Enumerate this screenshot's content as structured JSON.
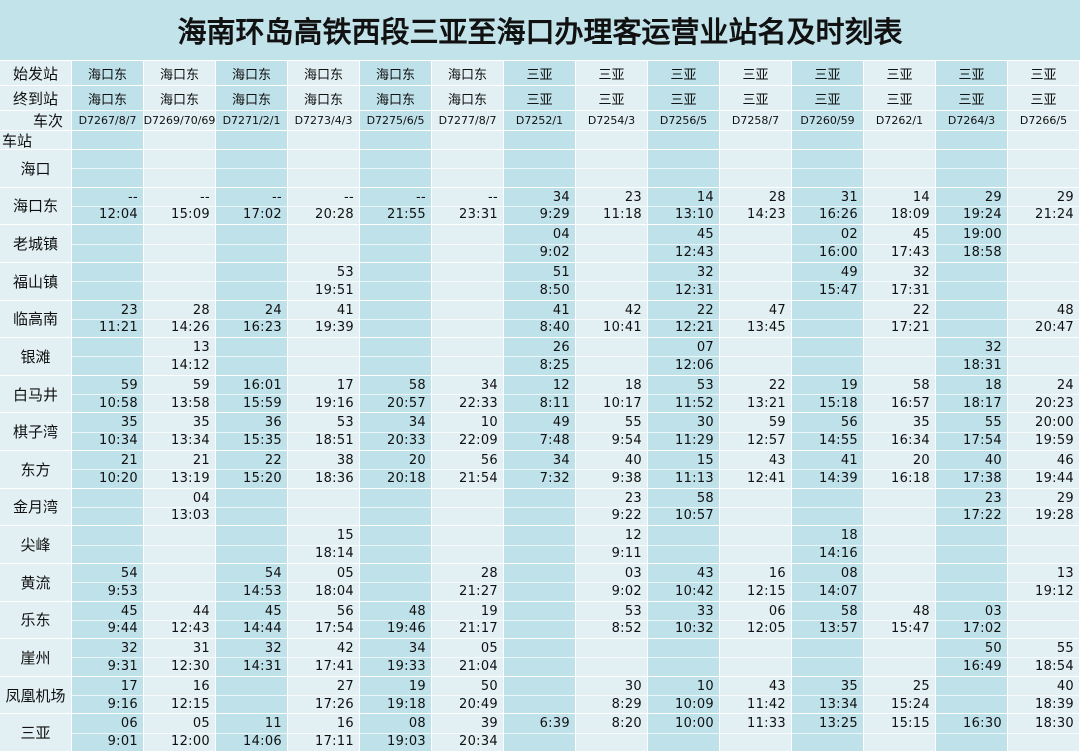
{
  "header": {
    "title": "海南环岛高铁西段三亚至海口办理客运营业站名及时刻表"
  },
  "table": {
    "row_labels": {
      "origin": "始发站",
      "destination": "终到站",
      "train": "车次",
      "station": "车站"
    },
    "columns": [
      {
        "origin": "海口东",
        "destination": "海口东",
        "train": "D7267/8/7"
      },
      {
        "origin": "海口东",
        "destination": "海口东",
        "train": "D7269/70/69"
      },
      {
        "origin": "海口东",
        "destination": "海口东",
        "train": "D7271/2/1"
      },
      {
        "origin": "海口东",
        "destination": "海口东",
        "train": "D7273/4/3"
      },
      {
        "origin": "海口东",
        "destination": "海口东",
        "train": "D7275/6/5"
      },
      {
        "origin": "海口东",
        "destination": "海口东",
        "train": "D7277/8/7"
      },
      {
        "origin": "三亚",
        "destination": "三亚",
        "train": "D7252/1"
      },
      {
        "origin": "三亚",
        "destination": "三亚",
        "train": "D7254/3"
      },
      {
        "origin": "三亚",
        "destination": "三亚",
        "train": "D7256/5"
      },
      {
        "origin": "三亚",
        "destination": "三亚",
        "train": "D7258/7"
      },
      {
        "origin": "三亚",
        "destination": "三亚",
        "train": "D7260/59"
      },
      {
        "origin": "三亚",
        "destination": "三亚",
        "train": "D7262/1"
      },
      {
        "origin": "三亚",
        "destination": "三亚",
        "train": "D7264/3"
      },
      {
        "origin": "三亚",
        "destination": "三亚",
        "train": "D7266/5"
      }
    ],
    "stations": [
      {
        "name": "海口",
        "cells": [
          null,
          null,
          null,
          null,
          null,
          null,
          null,
          null,
          null,
          null,
          null,
          null,
          null,
          null
        ]
      },
      {
        "name": "海口东",
        "cells": [
          [
            "--",
            "12:04"
          ],
          [
            "--",
            "15:09"
          ],
          [
            "--",
            "17:02"
          ],
          [
            "--",
            "20:28"
          ],
          [
            "--",
            "21:55"
          ],
          [
            "--",
            "23:31"
          ],
          [
            "34",
            "9:29"
          ],
          [
            "23",
            "11:18"
          ],
          [
            "14",
            "13:10"
          ],
          [
            "28",
            "14:23"
          ],
          [
            "31",
            "16:26"
          ],
          [
            "14",
            "18:09"
          ],
          [
            "29",
            "19:24"
          ],
          [
            "29",
            "21:24"
          ]
        ]
      },
      {
        "name": "老城镇",
        "cells": [
          null,
          null,
          null,
          null,
          null,
          null,
          [
            "04",
            "9:02"
          ],
          null,
          [
            "45",
            "12:43"
          ],
          null,
          [
            "02",
            "16:00"
          ],
          [
            "45",
            "17:43"
          ],
          [
            "19:00",
            "18:58"
          ],
          null
        ]
      },
      {
        "name": "福山镇",
        "cells": [
          null,
          null,
          null,
          [
            "53",
            "19:51"
          ],
          null,
          null,
          [
            "51",
            "8:50"
          ],
          null,
          [
            "32",
            "12:31"
          ],
          null,
          [
            "49",
            "15:47"
          ],
          [
            "32",
            "17:31"
          ],
          null,
          null
        ]
      },
      {
        "name": "临高南",
        "cells": [
          [
            "23",
            "11:21"
          ],
          [
            "28",
            "14:26"
          ],
          [
            "24",
            "16:23"
          ],
          [
            "41",
            "19:39"
          ],
          null,
          null,
          [
            "41",
            "8:40"
          ],
          [
            "42",
            "10:41"
          ],
          [
            "22",
            "12:21"
          ],
          [
            "47",
            "13:45"
          ],
          null,
          [
            "22",
            "17:21"
          ],
          null,
          [
            "48",
            "20:47"
          ]
        ]
      },
      {
        "name": "银滩",
        "cells": [
          null,
          [
            "13",
            "14:12"
          ],
          null,
          null,
          null,
          null,
          [
            "26",
            "8:25"
          ],
          null,
          [
            "07",
            "12:06"
          ],
          null,
          null,
          null,
          [
            "32",
            "18:31"
          ],
          null
        ]
      },
      {
        "name": "白马井",
        "cells": [
          [
            "59",
            "10:58"
          ],
          [
            "59",
            "13:58"
          ],
          [
            "16:01",
            "15:59"
          ],
          [
            "17",
            "19:16"
          ],
          [
            "58",
            "20:57"
          ],
          [
            "34",
            "22:33"
          ],
          [
            "12",
            "8:11"
          ],
          [
            "18",
            "10:17"
          ],
          [
            "53",
            "11:52"
          ],
          [
            "22",
            "13:21"
          ],
          [
            "19",
            "15:18"
          ],
          [
            "58",
            "16:57"
          ],
          [
            "18",
            "18:17"
          ],
          [
            "24",
            "20:23"
          ]
        ]
      },
      {
        "name": "棋子湾",
        "cells": [
          [
            "35",
            "10:34"
          ],
          [
            "35",
            "13:34"
          ],
          [
            "36",
            "15:35"
          ],
          [
            "53",
            "18:51"
          ],
          [
            "34",
            "20:33"
          ],
          [
            "10",
            "22:09"
          ],
          [
            "49",
            "7:48"
          ],
          [
            "55",
            "9:54"
          ],
          [
            "30",
            "11:29"
          ],
          [
            "59",
            "12:57"
          ],
          [
            "56",
            "14:55"
          ],
          [
            "35",
            "16:34"
          ],
          [
            "55",
            "17:54"
          ],
          [
            "20:00",
            "19:59"
          ]
        ]
      },
      {
        "name": "东方",
        "cells": [
          [
            "21",
            "10:20"
          ],
          [
            "21",
            "13:19"
          ],
          [
            "22",
            "15:20"
          ],
          [
            "38",
            "18:36"
          ],
          [
            "20",
            "20:18"
          ],
          [
            "56",
            "21:54"
          ],
          [
            "34",
            "7:32"
          ],
          [
            "40",
            "9:38"
          ],
          [
            "15",
            "11:13"
          ],
          [
            "43",
            "12:41"
          ],
          [
            "41",
            "14:39"
          ],
          [
            "20",
            "16:18"
          ],
          [
            "40",
            "17:38"
          ],
          [
            "46",
            "19:44"
          ]
        ]
      },
      {
        "name": "金月湾",
        "cells": [
          null,
          [
            "04",
            "13:03"
          ],
          null,
          null,
          null,
          null,
          null,
          [
            "23",
            "9:22"
          ],
          [
            "58",
            "10:57"
          ],
          null,
          null,
          null,
          [
            "23",
            "17:22"
          ],
          [
            "29",
            "19:28"
          ]
        ]
      },
      {
        "name": "尖峰",
        "cells": [
          null,
          null,
          null,
          [
            "15",
            "18:14"
          ],
          null,
          null,
          null,
          [
            "12",
            "9:11"
          ],
          null,
          null,
          [
            "18",
            "14:16"
          ],
          null,
          null,
          null
        ]
      },
      {
        "name": "黄流",
        "cells": [
          [
            "54",
            "9:53"
          ],
          null,
          [
            "54",
            "14:53"
          ],
          [
            "05",
            "18:04"
          ],
          null,
          [
            "28",
            "21:27"
          ],
          null,
          [
            "03",
            "9:02"
          ],
          [
            "43",
            "10:42"
          ],
          [
            "16",
            "12:15"
          ],
          [
            "08",
            "14:07"
          ],
          null,
          null,
          [
            "13",
            "19:12"
          ]
        ]
      },
      {
        "name": "乐东",
        "cells": [
          [
            "45",
            "9:44"
          ],
          [
            "44",
            "12:43"
          ],
          [
            "45",
            "14:44"
          ],
          [
            "56",
            "17:54"
          ],
          [
            "48",
            "19:46"
          ],
          [
            "19",
            "21:17"
          ],
          null,
          [
            "53",
            "8:52"
          ],
          [
            "33",
            "10:32"
          ],
          [
            "06",
            "12:05"
          ],
          [
            "58",
            "13:57"
          ],
          [
            "48",
            "15:47"
          ],
          [
            "03",
            "17:02"
          ],
          null
        ]
      },
      {
        "name": "崖州",
        "cells": [
          [
            "32",
            "9:31"
          ],
          [
            "31",
            "12:30"
          ],
          [
            "32",
            "14:31"
          ],
          [
            "42",
            "17:41"
          ],
          [
            "34",
            "19:33"
          ],
          [
            "05",
            "21:04"
          ],
          null,
          null,
          null,
          null,
          null,
          null,
          [
            "50",
            "16:49"
          ],
          [
            "55",
            "18:54"
          ]
        ]
      },
      {
        "name": "凤凰机场",
        "cells": [
          [
            "17",
            "9:16"
          ],
          [
            "16",
            "12:15"
          ],
          null,
          [
            "27",
            "17:26"
          ],
          [
            "19",
            "19:18"
          ],
          [
            "50",
            "20:49"
          ],
          null,
          [
            "30",
            "8:29"
          ],
          [
            "10",
            "10:09"
          ],
          [
            "43",
            "11:42"
          ],
          [
            "35",
            "13:34"
          ],
          [
            "25",
            "15:24"
          ],
          null,
          [
            "40",
            "18:39"
          ]
        ]
      },
      {
        "name": "三亚",
        "cells": [
          [
            "06",
            "9:01"
          ],
          [
            "05",
            "12:00"
          ],
          [
            "11",
            "14:06"
          ],
          [
            "16",
            "17:11"
          ],
          [
            "08",
            "19:03"
          ],
          [
            "39",
            "20:34"
          ],
          [
            "6:39",
            null
          ],
          [
            "8:20",
            null
          ],
          [
            "10:00",
            null
          ],
          [
            "11:33",
            null
          ],
          [
            "13:25",
            null
          ],
          [
            "15:15",
            null
          ],
          [
            "16:30",
            null
          ],
          [
            "18:30",
            null
          ]
        ]
      }
    ]
  }
}
